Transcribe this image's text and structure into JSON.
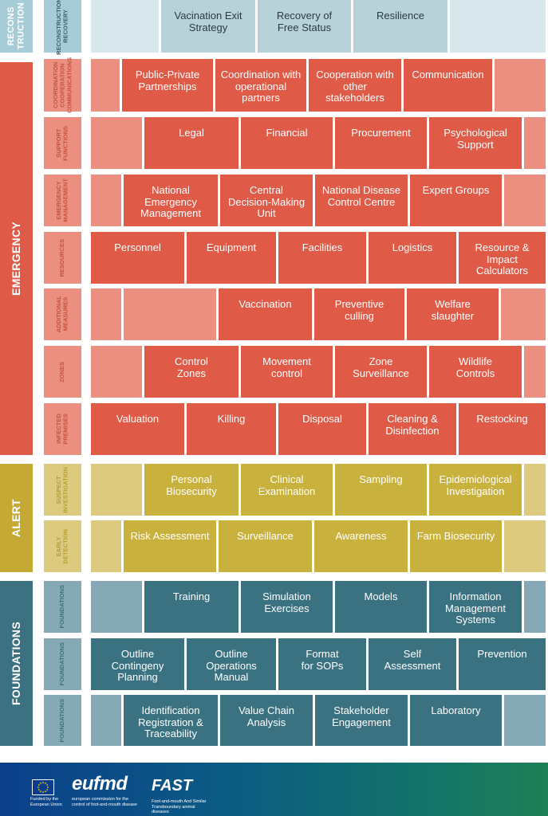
{
  "sections": [
    {
      "key": "reconstruction",
      "label": "RECONS\nTRUCTION",
      "size": "small",
      "color": "#a5ccd7"
    },
    {
      "key": "emergency",
      "label": "EMERGENCY",
      "color": "#df5a47"
    },
    {
      "key": "alert",
      "label": "ALERT",
      "color": "#c4aa35"
    },
    {
      "key": "foundations",
      "label": "FOUNDATIONS",
      "color": "#3c7181"
    }
  ],
  "rows": [
    {
      "label": "RECONSTRUCTION\nRECOVERY",
      "label_color": "#a5ccd7",
      "text_color": "#3e6070",
      "bricks": [
        {
          "text": "",
          "light": true
        },
        {
          "text": "Vacination Exit\nStrategy"
        },
        {
          "text": "Recovery of\nFree Status"
        },
        {
          "text": "Resilience"
        },
        {
          "text": "",
          "light": true
        }
      ],
      "colors": {
        "main": "#b8d2da",
        "light": "#d8e7ec",
        "text": "#2e3a42"
      }
    },
    {
      "label": "COORDINATION\nCOOPERATION\nCOMMUNICATIONS",
      "bricks": [
        {
          "text": "",
          "light": true
        },
        {
          "text": "Public-Private\nPartnerships"
        },
        {
          "text": "Coordination with\noperational\npartners"
        },
        {
          "text": "Cooperation with\nother\nstakeholders"
        },
        {
          "text": "Communication"
        },
        {
          "text": "",
          "light": true
        }
      ]
    },
    {
      "label": "SUPPORT\nFUNCTIONS",
      "bricks": [
        {
          "text": "",
          "light": true
        },
        {
          "text": "Legal"
        },
        {
          "text": "Financial"
        },
        {
          "text": "Procurement"
        },
        {
          "text": "Psychological\nSupport"
        },
        {
          "text": "",
          "light": true
        }
      ]
    },
    {
      "label": "EMERGENCY\nMANAGEMENT",
      "bricks": [
        {
          "text": "",
          "light": true
        },
        {
          "text": "National\nEmergency\nManagement"
        },
        {
          "text": "Central\nDecision-Making\nUnit"
        },
        {
          "text": "National Disease\nControl Centre"
        },
        {
          "text": "Expert Groups"
        },
        {
          "text": "",
          "light": true
        }
      ]
    },
    {
      "label": "RESOURCES",
      "bricks": [
        {
          "text": "Personnel"
        },
        {
          "text": "Equipment"
        },
        {
          "text": "Facilities"
        },
        {
          "text": "Logistics"
        },
        {
          "text": "Resource &\nImpact\nCalculators"
        }
      ]
    },
    {
      "label": "ADDITIONAL\nMEASURES",
      "bricks": [
        {
          "text": "",
          "light": true
        },
        {
          "text": "",
          "light": true
        },
        {
          "text": "Vaccination"
        },
        {
          "text": "Preventive\nculling"
        },
        {
          "text": "Welfare\nslaughter"
        },
        {
          "text": "",
          "light": true
        }
      ]
    },
    {
      "label": "ZONES",
      "bricks": [
        {
          "text": "",
          "light": true
        },
        {
          "text": "Control\nZones"
        },
        {
          "text": "Movement\ncontrol"
        },
        {
          "text": "Zone\nSurveillance"
        },
        {
          "text": "Wildlife\nControls"
        },
        {
          "text": "",
          "light": true
        }
      ]
    },
    {
      "label": "INFECTED\nPREMISES",
      "bricks": [
        {
          "text": "Valuation"
        },
        {
          "text": "Killing"
        },
        {
          "text": "Disposal"
        },
        {
          "text": "Cleaning &\nDisinfection"
        },
        {
          "text": "Restocking"
        }
      ]
    },
    {
      "label": "SUSPECT\nINVESTIGATION",
      "bricks": [
        {
          "text": "",
          "light": true
        },
        {
          "text": "Personal\nBiosecurity"
        },
        {
          "text": "Clinical\nExamination"
        },
        {
          "text": "Sampling"
        },
        {
          "text": "Epidemiological\nInvestigation"
        },
        {
          "text": "",
          "light": true
        }
      ]
    },
    {
      "label": "EARLY\nDETECTION",
      "bricks": [
        {
          "text": "",
          "light": true
        },
        {
          "text": "Risk Assessment"
        },
        {
          "text": "Surveillance"
        },
        {
          "text": "Awareness"
        },
        {
          "text": "Farm Biosecurity"
        },
        {
          "text": "",
          "light": true
        }
      ]
    },
    {
      "label": "FOUNDATIONS",
      "bricks": [
        {
          "text": "",
          "light": true
        },
        {
          "text": "Training"
        },
        {
          "text": "Simulation\nExercises"
        },
        {
          "text": "Models"
        },
        {
          "text": "Information\nManagement\nSystems"
        },
        {
          "text": "",
          "light": true
        }
      ]
    },
    {
      "label": "FOUNDATIONS",
      "bricks": [
        {
          "text": "Outline\nContingeny\nPlanning"
        },
        {
          "text": "Outline\nOperations\nManual"
        },
        {
          "text": "Format\nfor SOPs"
        },
        {
          "text": "Self\nAssessment"
        },
        {
          "text": "Prevention"
        }
      ]
    },
    {
      "label": "FOUNDATIONS",
      "bricks": [
        {
          "text": "",
          "light": true
        },
        {
          "text": "Identification\nRegistration &\nTraceability"
        },
        {
          "text": "Value Chain\nAnalysis"
        },
        {
          "text": "Stakeholder\nEngagement"
        },
        {
          "text": "Laboratory"
        },
        {
          "text": "",
          "light": true
        }
      ]
    }
  ],
  "palette": {
    "emergency": {
      "main": "#df5a47",
      "light": "#eb9081",
      "label": "#eb9081",
      "label_text": "#c9513f"
    },
    "alert": {
      "main": "#c9b13d",
      "light": "#dccb7e",
      "label": "#dccb7e",
      "label_text": "#b79e32"
    },
    "foundations": {
      "main": "#3b7282",
      "light": "#86aab5",
      "label": "#86aab5",
      "label_text": "#3b7282"
    },
    "reconstruction": {
      "main": "#b8d2da",
      "light": "#d8e7ec",
      "label": "#a5ccd7",
      "label_text": "#3e6070"
    }
  },
  "footer": {
    "eu_caption": "Funded by the\nEuropean Union",
    "logo1": "eufmd",
    "logo1_caption": "european commission for the\ncontrol of foot-and-mouth disease",
    "logo2": "FAST",
    "logo2_caption": "Foot-and-mouth And Similar\nTransboundary animal diseases"
  }
}
